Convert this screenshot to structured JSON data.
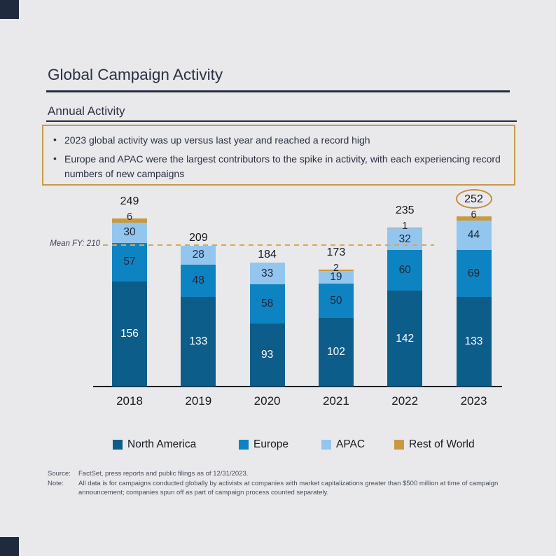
{
  "page": {
    "title": "Global Campaign Activity",
    "subtitle": "Annual Activity",
    "bullets": [
      "2023 global activity was up versus last year and reached a record high",
      "Europe and APAC were the largest contributors to the spike in activity, with each experiencing record numbers of new campaigns"
    ]
  },
  "chart_data": {
    "type": "bar",
    "stacked": true,
    "title": "Annual Activity",
    "categories": [
      "2018",
      "2019",
      "2020",
      "2021",
      "2022",
      "2023"
    ],
    "series": [
      {
        "name": "North America",
        "color": "#0d5d8b",
        "values": [
          156,
          133,
          93,
          102,
          142,
          133
        ]
      },
      {
        "name": "Europe",
        "color": "#0e83c2",
        "values": [
          57,
          48,
          58,
          50,
          60,
          69
        ]
      },
      {
        "name": "APAC",
        "color": "#92c6ee",
        "values": [
          30,
          28,
          33,
          19,
          32,
          44
        ]
      },
      {
        "name": "Rest of World",
        "color": "#c9993f",
        "values": [
          6,
          0,
          0,
          2,
          1,
          6
        ]
      }
    ],
    "totals": [
      249,
      209,
      184,
      173,
      235,
      252
    ],
    "mean_line": {
      "label": "Mean FY: 210",
      "value": 210,
      "color": "#d9a84e"
    },
    "highlight": {
      "category": "2023",
      "total": 252,
      "style": "gold-ellipse"
    },
    "ylim": [
      0,
      260
    ],
    "grid": false,
    "legend_position": "bottom",
    "xlabel": "",
    "ylabel": ""
  },
  "footer": {
    "source_label": "Source:",
    "source_text": "FactSet, press reports and public filings as of 12/31/2023.",
    "note_label": "Note:",
    "note_text": "All data is for campaigns conducted globally by activists at companies with market capitalizations greater than $500 million at time of campaign announcement; companies spun off as part of campaign process counted separately."
  },
  "colors": {
    "background": "#e9e9eb",
    "accent_gold": "#c8994a",
    "heading": "#2b3144",
    "na_label_text": "#ffffff",
    "value_label_text": "#1f2637"
  }
}
